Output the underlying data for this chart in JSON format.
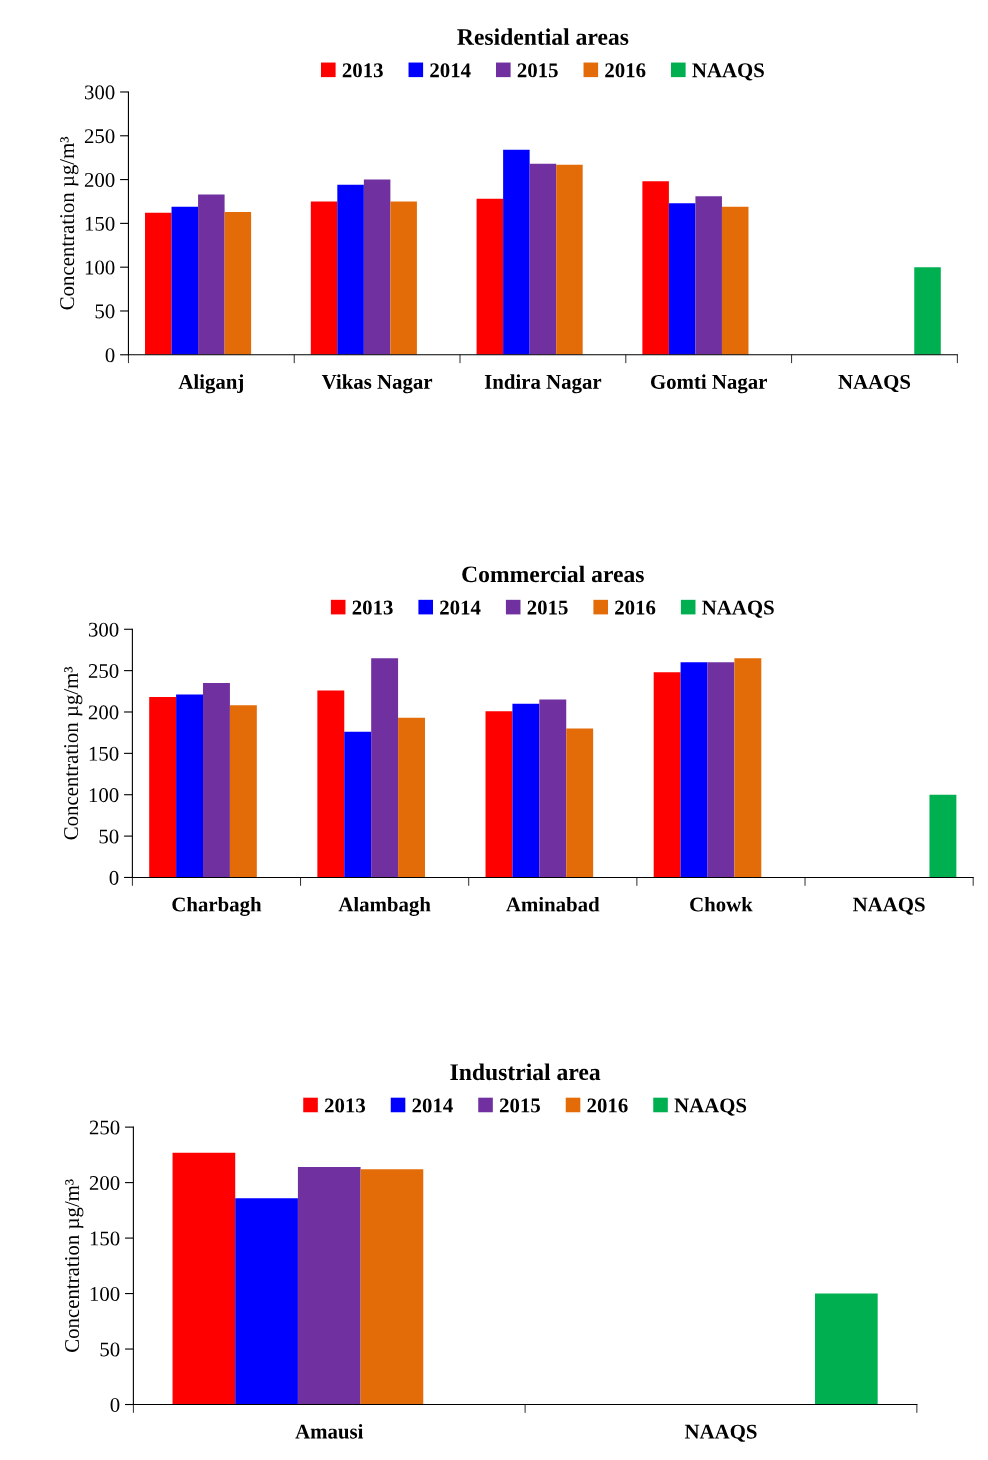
{
  "chart_data": [
    {
      "type": "bar",
      "title": "Residential areas",
      "ylabel": "Concentration µg/m³",
      "categories": [
        "Aliganj",
        "Vikas Nagar",
        "Indira Nagar",
        "Gomti Nagar",
        "NAAQS"
      ],
      "ylim": [
        0,
        300
      ],
      "yticks": [
        0,
        50,
        100,
        150,
        200,
        250,
        300
      ],
      "grid": false,
      "legend": "top",
      "series": [
        {
          "name": "2013",
          "color": "#ff0000",
          "values": [
            162,
            175,
            178,
            198,
            null
          ]
        },
        {
          "name": "2014",
          "color": "#0000ff",
          "values": [
            169,
            194,
            234,
            173,
            null
          ]
        },
        {
          "name": "2015",
          "color": "#7030a0",
          "values": [
            183,
            200,
            218,
            181,
            null
          ]
        },
        {
          "name": "2016",
          "color": "#e36c09",
          "values": [
            163,
            175,
            217,
            169,
            null
          ]
        },
        {
          "name": "NAAQS",
          "color": "#00b050",
          "values": [
            null,
            null,
            null,
            null,
            100
          ]
        }
      ]
    },
    {
      "type": "bar",
      "title": "Commercial areas",
      "ylabel": "Concentration µg/m³",
      "categories": [
        "Charbagh",
        "Alambagh",
        "Aminabad",
        "Chowk",
        "NAAQS"
      ],
      "ylim": [
        0,
        300
      ],
      "yticks": [
        0,
        50,
        100,
        150,
        200,
        250,
        300
      ],
      "grid": false,
      "legend": "top",
      "series": [
        {
          "name": "2013",
          "color": "#ff0000",
          "values": [
            218,
            226,
            201,
            248,
            null
          ]
        },
        {
          "name": "2014",
          "color": "#0000ff",
          "values": [
            221,
            176,
            210,
            260,
            null
          ]
        },
        {
          "name": "2015",
          "color": "#7030a0",
          "values": [
            235,
            265,
            215,
            260,
            null
          ]
        },
        {
          "name": "2016",
          "color": "#e36c09",
          "values": [
            208,
            193,
            180,
            265,
            null
          ]
        },
        {
          "name": "NAAQS",
          "color": "#00b050",
          "values": [
            null,
            null,
            null,
            null,
            100
          ]
        }
      ]
    },
    {
      "type": "bar",
      "title": "Industrial area",
      "ylabel": "Concentration µg/m³",
      "categories": [
        "Amausi",
        "NAAQS"
      ],
      "ylim": [
        0,
        250
      ],
      "yticks": [
        0,
        50,
        100,
        150,
        200,
        250
      ],
      "grid": false,
      "legend": "top",
      "series": [
        {
          "name": "2013",
          "color": "#ff0000",
          "values": [
            227,
            null
          ]
        },
        {
          "name": "2014",
          "color": "#0000ff",
          "values": [
            186,
            null
          ]
        },
        {
          "name": "2015",
          "color": "#7030a0",
          "values": [
            214,
            null
          ]
        },
        {
          "name": "2016",
          "color": "#e36c09",
          "values": [
            212,
            null
          ]
        },
        {
          "name": "NAAQS",
          "color": "#00b050",
          "values": [
            null,
            100
          ]
        }
      ]
    }
  ]
}
